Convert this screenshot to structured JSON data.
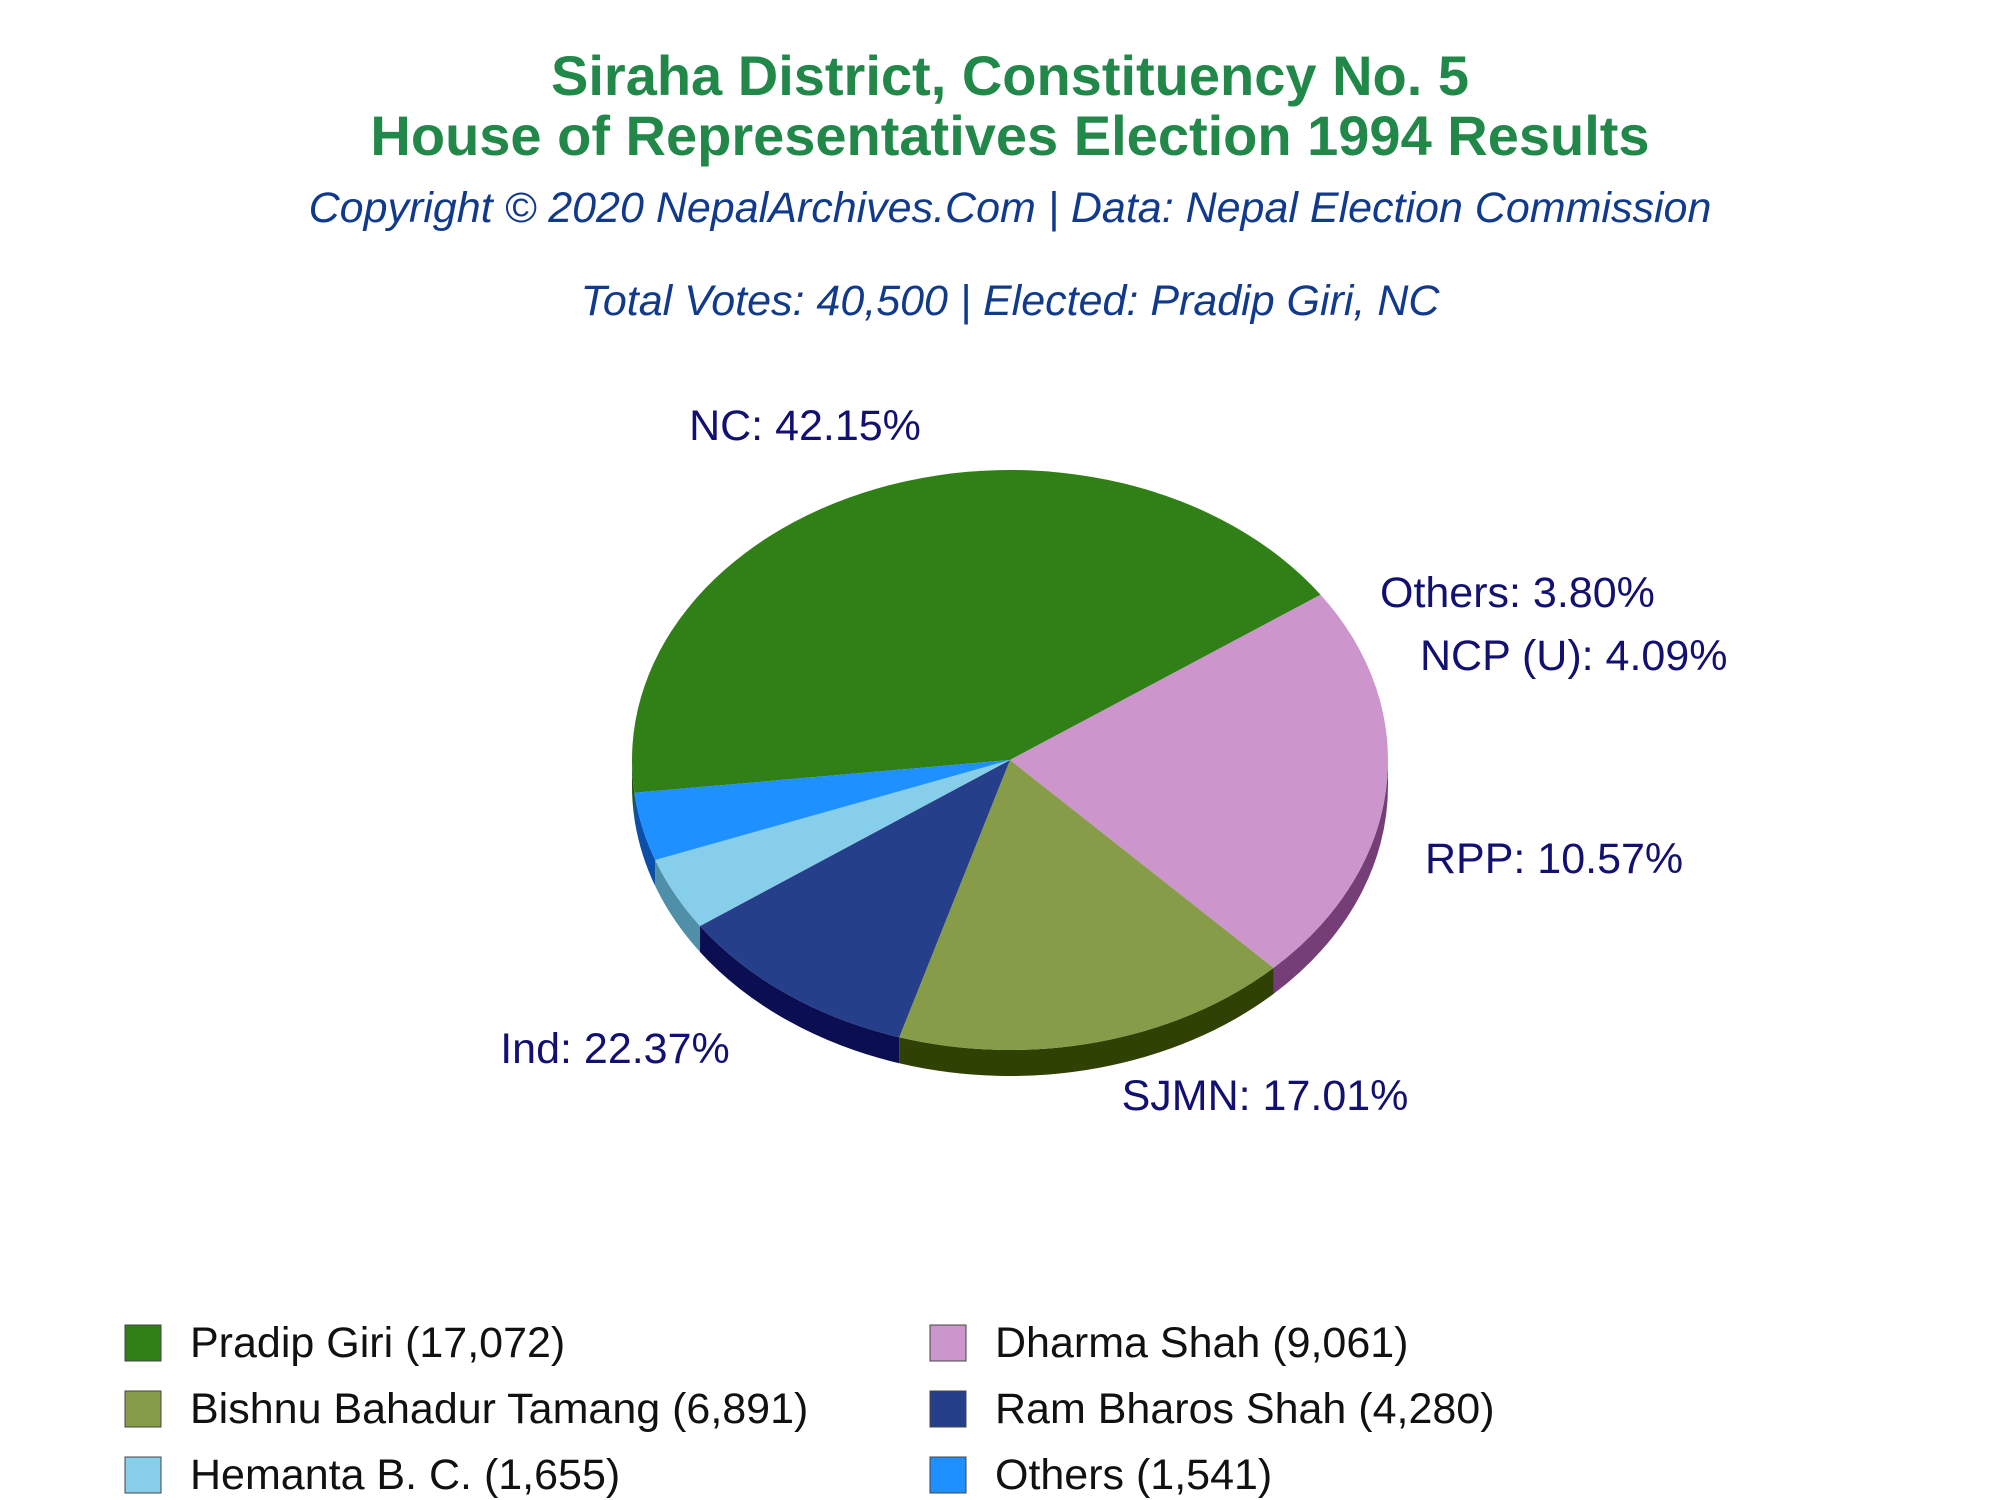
{
  "chart_data": {
    "type": "pie",
    "title": "Siraha District, Constituency No. 5",
    "subtitle": "House of Representatives Election 1994 Results",
    "credit": "Copyright © 2020 NepalArchives.Com | Data: Nepal Election Commission",
    "summary": "Total Votes: 40,500 | Elected: Pradip Giri, NC",
    "slices": [
      {
        "party": "NC",
        "label": "NC: 42.15%",
        "percent": 42.15,
        "candidate": "Pradip Giri (17,072)",
        "votes": 17072,
        "color": "#318017",
        "side_color": "#1d5410"
      },
      {
        "party": "Ind",
        "label": "Ind: 22.37%",
        "percent": 22.37,
        "candidate": "Dharma Shah (9,061)",
        "votes": 9061,
        "color": "#cc95cc",
        "side_color": "#763e76"
      },
      {
        "party": "SJMN",
        "label": "SJMN: 17.01%",
        "percent": 17.01,
        "candidate": "Bishnu Bahadur Tamang (6,891)",
        "votes": 6891,
        "color": "#869c48",
        "side_color": "#2f4203"
      },
      {
        "party": "RPP",
        "label": "RPP: 10.57%",
        "percent": 10.57,
        "candidate": "Ram Bharos Shah (4,280)",
        "votes": 4280,
        "color": "#253f8a",
        "side_color": "#0b0f52"
      },
      {
        "party": "NCP (U)",
        "label": "NCP (U): 4.09%",
        "percent": 4.09,
        "candidate": "Hemanta B. C. (1,655)",
        "votes": 1655,
        "color": "#87ceea",
        "side_color": "#4f8fa8"
      },
      {
        "party": "Others",
        "label": "Others: 3.80%",
        "percent": 3.8,
        "candidate": "Others (1,541)",
        "votes": 1541,
        "color": "#1e90ff",
        "side_color": "#0b4fa8"
      }
    ],
    "legend": [
      {
        "text": "Pradip Giri (17,072)",
        "color": "#318017"
      },
      {
        "text": "Dharma Shah (9,061)",
        "color": "#cc95cc"
      },
      {
        "text": "Bishnu Bahadur Tamang (6,891)",
        "color": "#869c48"
      },
      {
        "text": "Ram Bharos Shah (4,280)",
        "color": "#253f8a"
      },
      {
        "text": "Hemanta B. C. (1,655)",
        "color": "#87ceea"
      },
      {
        "text": "Others (1,541)",
        "color": "#1e90ff"
      }
    ],
    "legend_placement": "bottom",
    "pie_style": "3d-tilted"
  }
}
